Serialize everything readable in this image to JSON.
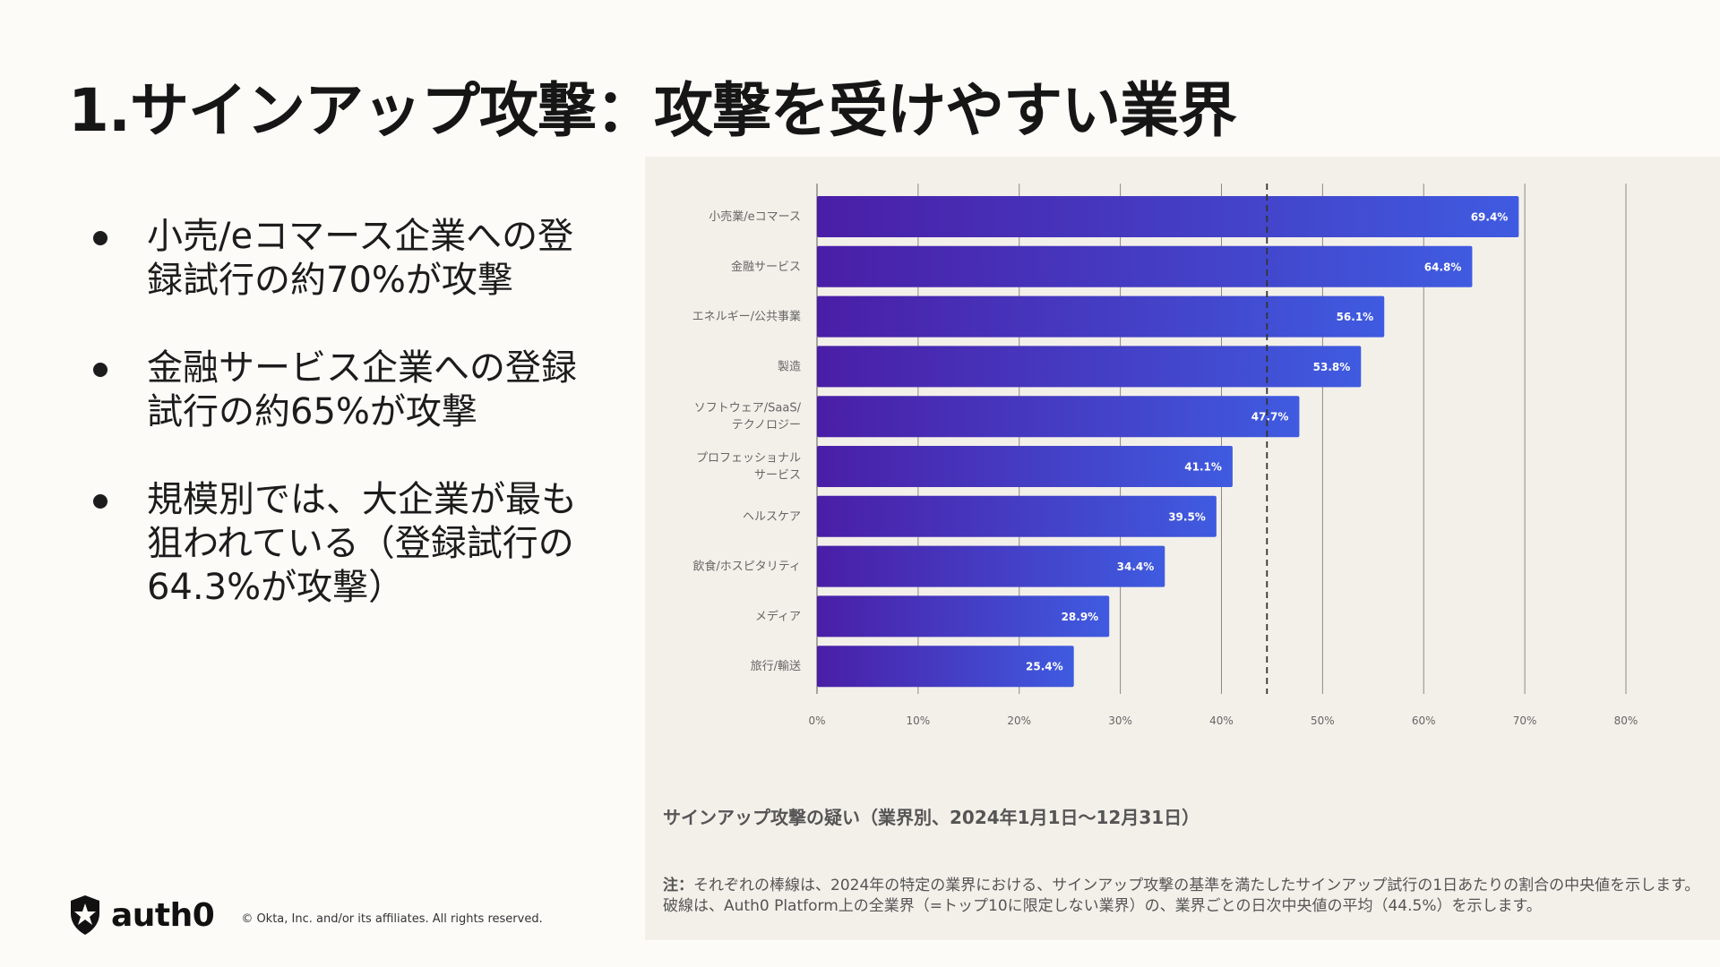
{
  "slide": {
    "title": "1.サインアップ攻撃：攻撃を受けやすい業界",
    "bullets": [
      "小売/eコマース企業への登録試行の約70%が攻撃",
      "金融サービス企業への登録試行の約65%が攻撃",
      "規模別では、大企業が最も狙われている（登録試行の64.3%が攻撃）"
    ]
  },
  "chart_data": {
    "type": "bar",
    "orientation": "horizontal",
    "categories": [
      [
        "小売業/eコマース"
      ],
      [
        "金融サービス"
      ],
      [
        "エネルギー/公共事業"
      ],
      [
        "製造"
      ],
      [
        "ソフトウェア/SaaS/",
        "テクノロジー"
      ],
      [
        "プロフェッショナル",
        "サービス"
      ],
      [
        "ヘルスケア"
      ],
      [
        "飲食/ホスピタリティ"
      ],
      [
        "メディア"
      ],
      [
        "旅行/輸送"
      ]
    ],
    "values": [
      69.4,
      64.8,
      56.1,
      53.8,
      47.7,
      41.1,
      39.5,
      34.4,
      28.9,
      25.4
    ],
    "value_labels": [
      "69.4%",
      "64.8%",
      "56.1%",
      "53.8%",
      "47.7%",
      "41.1%",
      "39.5%",
      "34.4%",
      "28.9%",
      "25.4%"
    ],
    "xlim": [
      0,
      80
    ],
    "xticks": [
      0,
      10,
      20,
      30,
      40,
      50,
      60,
      70,
      80
    ],
    "xtick_labels": [
      "0%",
      "10%",
      "20%",
      "30%",
      "40%",
      "50%",
      "60%",
      "70%",
      "80%"
    ],
    "reference_line": {
      "value": 44.5,
      "style": "dashed"
    },
    "grid": "vertical",
    "colors": {
      "bar_start": "#4a1ea6",
      "bar_end": "#3f5be0",
      "grid": "#8d8a85",
      "label": "#666666",
      "value_label": "#ffffff"
    },
    "caption": "サインアップ攻撃の疑い（業界別、2024年1月1日〜12月31日）",
    "note_label": "注：",
    "note": "それぞれの棒線は、2024年の特定の業界における、サインアップ攻撃の基準を満たしたサインアップ試行の1日あたりの割合の中央値を示します。破線は、Auth0 Platform上の全業界（=トップ10に限定しない業界）の、業界ごとの日次中央値の平均（44.5%）を示します。"
  },
  "footer": {
    "logo_text": "auth0",
    "logo_icon": "auth0-shield-icon",
    "copyright": "© Okta, Inc. and/or its affiliates. All rights reserved."
  }
}
